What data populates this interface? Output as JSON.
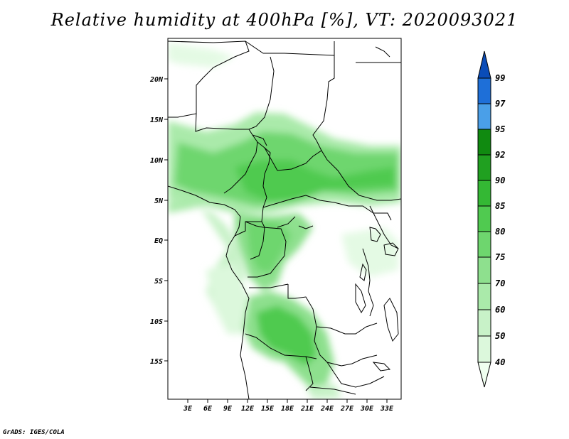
{
  "title": "Relative humidity at 400hPa [%], VT: 2020093021",
  "credit": "GrADS: IGES/COLA",
  "map": {
    "lat_labels": [
      "20N",
      "15N",
      "10N",
      "5N",
      "EQ",
      "5S",
      "10S",
      "15S"
    ],
    "lon_labels": [
      "3E",
      "6E",
      "9E",
      "12E",
      "15E",
      "18E",
      "21E",
      "24E",
      "27E",
      "30E",
      "33E"
    ]
  },
  "colorbar": {
    "levels": [
      "40",
      "50",
      "60",
      "70",
      "75",
      "80",
      "85",
      "90",
      "92",
      "95",
      "97",
      "99"
    ],
    "colors": [
      "#f0fff0",
      "#dcf8dc",
      "#c8f2c8",
      "#aaeaaa",
      "#8ee08e",
      "#6ed66e",
      "#50ca50",
      "#34b834",
      "#20a020",
      "#108a10",
      "#4a9fe8",
      "#1e6fd8",
      "#0a4cb8"
    ]
  }
}
